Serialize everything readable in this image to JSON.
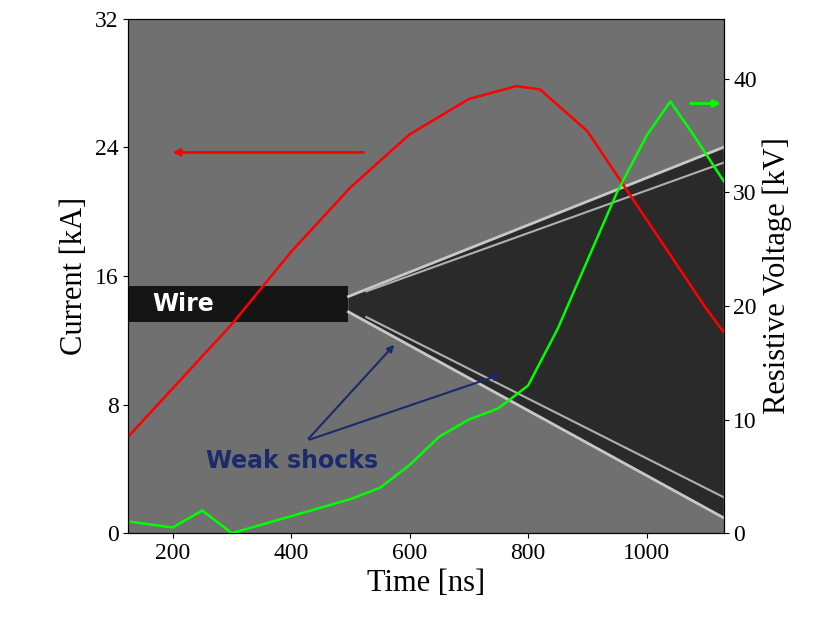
{
  "chart_data": {
    "type": "line",
    "x_label": "Time [ns]",
    "y_label": "Current [kA]",
    "y2_label": "Resistive Voltage [kV]",
    "xlim": [
      125,
      1130
    ],
    "xticks": [
      200,
      400,
      600,
      800,
      1000
    ],
    "ylim": [
      0,
      32
    ],
    "yticks": [
      0,
      8,
      16,
      24,
      32
    ],
    "y2lim": [
      0,
      45.3
    ],
    "y2ticks": [
      0,
      10,
      20,
      30,
      40
    ],
    "annotations": [
      {
        "text": "Wire"
      },
      {
        "text": "Weak shocks"
      }
    ],
    "series": [
      {
        "color": "#ff0000",
        "axis": "y",
        "x": [
          125,
          200,
          300,
          400,
          500,
          600,
          700,
          780,
          820,
          900,
          1000,
          1100,
          1130
        ],
        "values": [
          6,
          9,
          13,
          17.5,
          21.5,
          24.8,
          27,
          27.8,
          27.6,
          25,
          19.5,
          14,
          12.5
        ]
      },
      {
        "color": "#00ff00",
        "axis": "y2",
        "x": [
          130,
          200,
          250,
          300,
          400,
          500,
          550,
          600,
          650,
          700,
          750,
          800,
          850,
          900,
          950,
          1000,
          1040,
          1080,
          1130
        ],
        "values": [
          1,
          0.5,
          2,
          0,
          1.5,
          3,
          4,
          6,
          8.5,
          10,
          11,
          13,
          18,
          24,
          30,
          35,
          38,
          35,
          31
        ]
      }
    ]
  }
}
